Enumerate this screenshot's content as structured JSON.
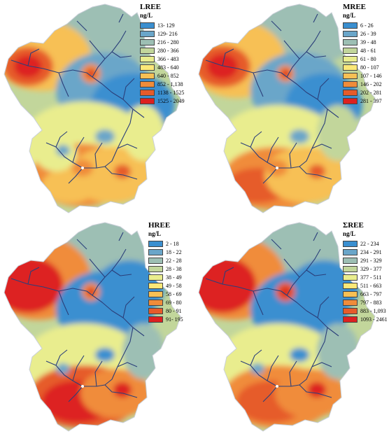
{
  "maps": [
    {
      "title": "LREE",
      "unit": "ng/L",
      "classes": [
        {
          "range": "13- 129",
          "color": "#3a8fd0"
        },
        {
          "range": "129- 216",
          "color": "#6aa6c9"
        },
        {
          "range": "216 - 280",
          "color": "#9dbfb4"
        },
        {
          "range": "280 - 366",
          "color": "#c2d69b"
        },
        {
          "range": "366 - 483",
          "color": "#e9ed8e"
        },
        {
          "range": "483 - 640",
          "color": "#fbe878"
        },
        {
          "range": "640 - 852",
          "color": "#f7c054"
        },
        {
          "range": "852 - 1,138",
          "color": "#f08c3a"
        },
        {
          "range": "1138 - 1525",
          "color": "#e65b2a"
        },
        {
          "range": "1525 - 2049",
          "color": "#dd2020"
        }
      ]
    },
    {
      "title": "MREE",
      "unit": "ng/L",
      "classes": [
        {
          "range": "6 - 26",
          "color": "#3a8fd0"
        },
        {
          "range": "26 - 39",
          "color": "#6aa6c9"
        },
        {
          "range": "39 - 48",
          "color": "#9dbfb4"
        },
        {
          "range": "48 - 61",
          "color": "#c2d69b"
        },
        {
          "range": "61 - 80",
          "color": "#e9ed8e"
        },
        {
          "range": "80 - 107",
          "color": "#fbe878"
        },
        {
          "range": "107 - 146",
          "color": "#f7c054"
        },
        {
          "range": "146 - 202",
          "color": "#f08c3a"
        },
        {
          "range": "202 - 281",
          "color": "#e65b2a"
        },
        {
          "range": "281 - 397",
          "color": "#dd2020"
        }
      ]
    },
    {
      "title": "HREE",
      "unit": "ng/L",
      "classes": [
        {
          "range": "2 - 18",
          "color": "#3a8fd0"
        },
        {
          "range": "18 - 22",
          "color": "#6aa6c9"
        },
        {
          "range": "22 - 28",
          "color": "#9dbfb4"
        },
        {
          "range": "28 - 38",
          "color": "#c2d69b"
        },
        {
          "range": "38 - 49",
          "color": "#e9ed8e"
        },
        {
          "range": "49 - 58",
          "color": "#fbe878"
        },
        {
          "range": "58 - 69",
          "color": "#f7c054"
        },
        {
          "range": "69 - 80",
          "color": "#f08c3a"
        },
        {
          "range": "80 - 91",
          "color": "#e65b2a"
        },
        {
          "range": "91- 195",
          "color": "#dd2020"
        }
      ]
    },
    {
      "title": "ΣREE",
      "unit": "ng/L",
      "classes": [
        {
          "range": "22 - 234",
          "color": "#3a8fd0"
        },
        {
          "range": "234 - 291",
          "color": "#6aa6c9"
        },
        {
          "range": "291 - 329",
          "color": "#9dbfb4"
        },
        {
          "range": "329 - 377",
          "color": "#c2d69b"
        },
        {
          "range": "377 - 511",
          "color": "#e9ed8e"
        },
        {
          "range": "511 - 663",
          "color": "#fbe878"
        },
        {
          "range": "663 - 797",
          "color": "#f7c054"
        },
        {
          "range": "797 - 883",
          "color": "#f08c3a"
        },
        {
          "range": "883 - 1,093",
          "color": "#e65b2a"
        },
        {
          "range": "1093 - 2461",
          "color": "#dd2020"
        }
      ]
    }
  ],
  "colors": {
    "river": "#2b3f7a",
    "outline": "#c9cfd8",
    "hotspot_center": "#ffffff"
  }
}
